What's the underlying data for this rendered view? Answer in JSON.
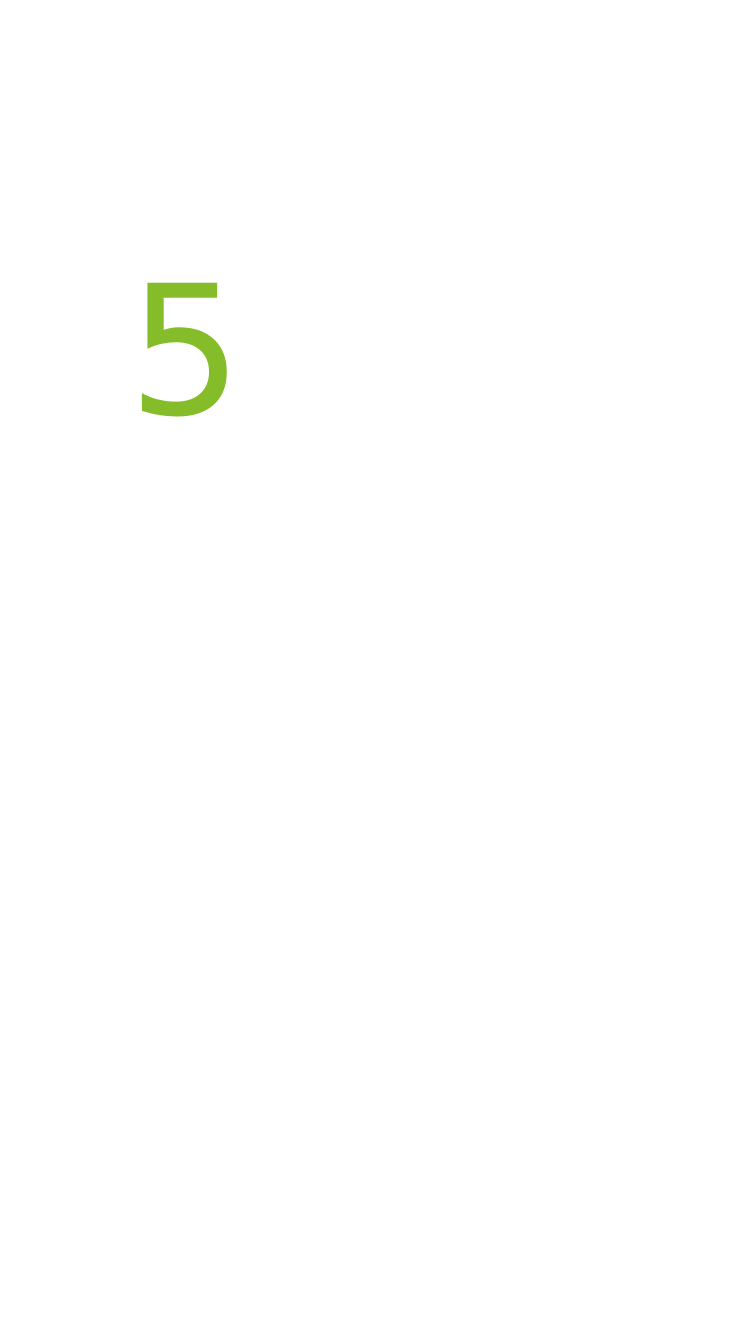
{
  "countdown": {
    "value": "5",
    "color": "#85bd2a"
  }
}
